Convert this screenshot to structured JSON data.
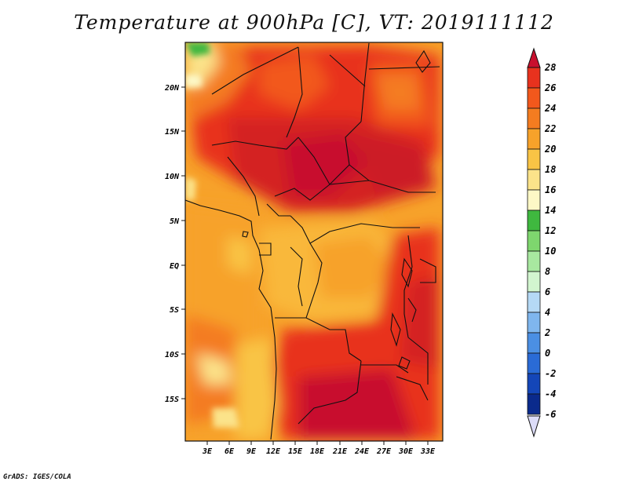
{
  "title": "Temperature at 900hPa [C], VT: 2019111112",
  "footer": "GrADS: IGES/COLA",
  "axes": {
    "lat_labels": [
      "20N",
      "15N",
      "10N",
      "5N",
      "EQ",
      "5S",
      "10S",
      "15S"
    ],
    "lon_labels": [
      "3E",
      "6E",
      "9E",
      "12E",
      "15E",
      "18E",
      "21E",
      "24E",
      "27E",
      "30E",
      "33E"
    ]
  },
  "colorbar": {
    "levels": [
      "28",
      "26",
      "24",
      "22",
      "20",
      "18",
      "16",
      "14",
      "12",
      "10",
      "8",
      "6",
      "4",
      "2",
      "0",
      "-2",
      "-4",
      "-6"
    ],
    "colors": [
      "#c8102e",
      "#e8321e",
      "#f2581c",
      "#f47c20",
      "#f7a22a",
      "#f9c445",
      "#fbe38a",
      "#fdf8c6",
      "#3fb83f",
      "#7ed66e",
      "#a8e8a0",
      "#d2f5cf",
      "#b5d9f5",
      "#7fb6ee",
      "#4b8fe3",
      "#2a6bd6",
      "#1446b8",
      "#0a2a8c",
      "#07125a"
    ],
    "over_color": "#c8102e",
    "under_color": "#dcdcf8"
  }
}
